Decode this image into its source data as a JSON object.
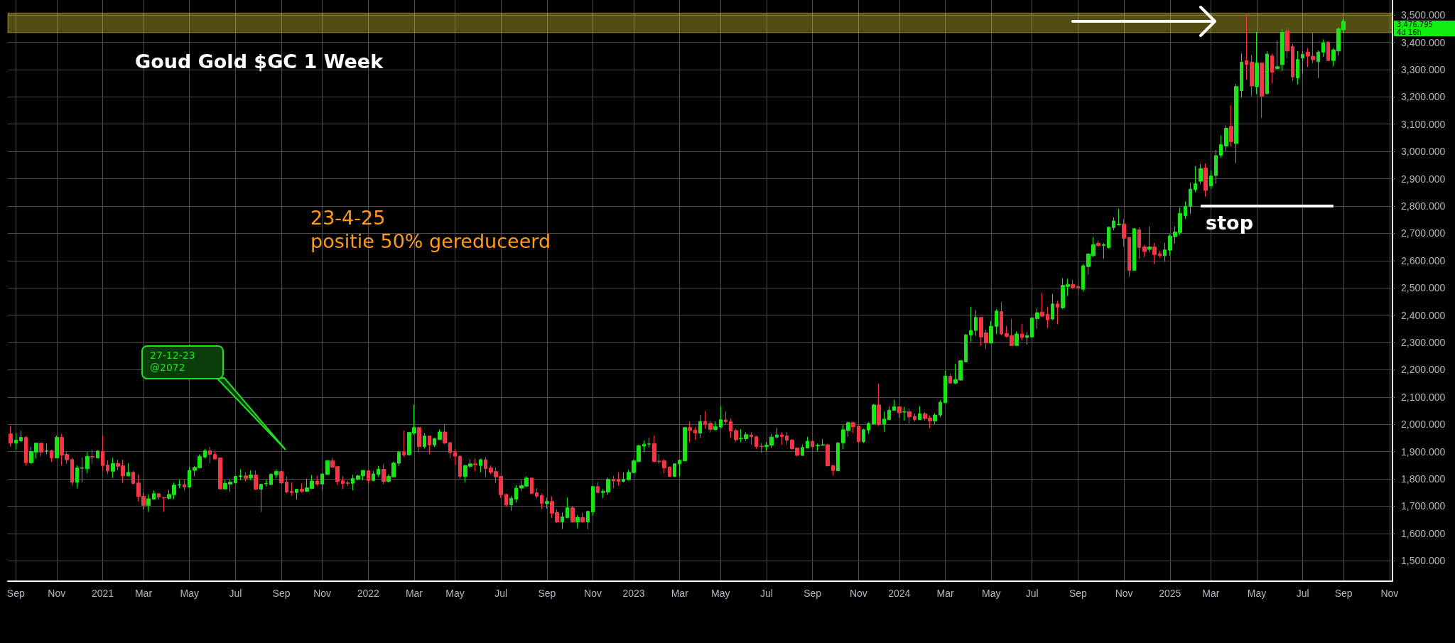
{
  "chart_data": {
    "type": "candlestick",
    "title": "Goud Gold $GC 1 Week",
    "x": [
      "2020-08-31",
      "2020-09-07",
      "2020-09-14",
      "2020-09-21",
      "2020-09-28",
      "2020-10-05",
      "2020-10-12",
      "2020-10-19",
      "2020-10-26",
      "2020-11-02",
      "2020-11-09",
      "2020-11-16",
      "2020-11-23",
      "2020-11-30",
      "2020-12-07",
      "2020-12-14",
      "2020-12-21",
      "2020-12-28",
      "2021-01-04",
      "2021-01-11",
      "2021-01-18",
      "2021-01-25",
      "2021-02-01",
      "2021-02-08",
      "2021-02-15",
      "2021-02-22",
      "2021-03-01",
      "2021-03-08",
      "2021-03-15",
      "2021-03-22",
      "2021-03-29",
      "2021-04-05",
      "2021-04-12",
      "2021-04-19",
      "2021-04-26",
      "2021-05-03",
      "2021-05-10",
      "2021-05-17",
      "2021-05-24",
      "2021-05-31",
      "2021-06-07",
      "2021-06-14",
      "2021-06-21",
      "2021-06-28",
      "2021-07-05",
      "2021-07-12",
      "2021-07-19",
      "2021-07-26",
      "2021-08-02",
      "2021-08-09",
      "2021-08-16",
      "2021-08-23",
      "2021-08-30",
      "2021-09-06",
      "2021-09-13",
      "2021-09-20",
      "2021-09-27",
      "2021-10-04",
      "2021-10-11",
      "2021-10-18",
      "2021-10-25",
      "2021-11-01",
      "2021-11-08",
      "2021-11-15",
      "2021-11-22",
      "2021-11-29",
      "2021-12-06",
      "2021-12-13",
      "2021-12-20",
      "2021-12-27",
      "2022-01-03",
      "2022-01-10",
      "2022-01-17",
      "2022-01-24",
      "2022-01-31",
      "2022-02-07",
      "2022-02-14",
      "2022-02-21",
      "2022-02-28",
      "2022-03-07",
      "2022-03-14",
      "2022-03-21",
      "2022-03-28",
      "2022-04-04",
      "2022-04-11",
      "2022-04-18",
      "2022-04-25",
      "2022-05-02",
      "2022-05-09",
      "2022-05-16",
      "2022-05-23",
      "2022-05-30",
      "2022-06-06",
      "2022-06-13",
      "2022-06-20",
      "2022-06-27",
      "2022-07-04",
      "2022-07-11",
      "2022-07-18",
      "2022-07-25",
      "2022-08-01",
      "2022-08-08",
      "2022-08-15",
      "2022-08-22",
      "2022-08-29",
      "2022-09-05",
      "2022-09-12",
      "2022-09-19",
      "2022-09-26",
      "2022-10-03",
      "2022-10-10",
      "2022-10-17",
      "2022-10-24",
      "2022-10-31",
      "2022-11-07",
      "2022-11-14",
      "2022-11-21",
      "2022-11-28",
      "2022-12-05",
      "2022-12-12",
      "2022-12-19",
      "2022-12-26",
      "2023-01-02",
      "2023-01-09",
      "2023-01-16",
      "2023-01-23",
      "2023-01-30",
      "2023-02-06",
      "2023-02-13",
      "2023-02-20",
      "2023-02-27",
      "2023-03-06",
      "2023-03-13",
      "2023-03-20",
      "2023-03-27",
      "2023-04-03",
      "2023-04-10",
      "2023-04-17",
      "2023-04-24",
      "2023-05-01",
      "2023-05-08",
      "2023-05-15",
      "2023-05-22",
      "2023-05-29",
      "2023-06-05",
      "2023-06-12",
      "2023-06-19",
      "2023-06-26",
      "2023-07-03",
      "2023-07-10",
      "2023-07-17",
      "2023-07-24",
      "2023-07-31",
      "2023-08-07",
      "2023-08-14",
      "2023-08-21",
      "2023-08-28",
      "2023-09-04",
      "2023-09-11",
      "2023-09-18",
      "2023-09-25",
      "2023-10-02",
      "2023-10-09",
      "2023-10-16",
      "2023-10-23",
      "2023-10-30",
      "2023-11-06",
      "2023-11-13",
      "2023-11-20",
      "2023-11-27",
      "2023-12-04",
      "2023-12-11",
      "2023-12-18",
      "2023-12-25",
      "2024-01-01",
      "2024-01-08",
      "2024-01-15",
      "2024-01-22",
      "2024-01-29",
      "2024-02-05",
      "2024-02-12",
      "2024-02-19",
      "2024-02-26",
      "2024-03-04",
      "2024-03-11",
      "2024-03-18",
      "2024-03-25",
      "2024-04-01",
      "2024-04-08",
      "2024-04-15",
      "2024-04-22",
      "2024-04-29",
      "2024-05-06",
      "2024-05-13",
      "2024-05-20",
      "2024-05-27",
      "2024-06-03",
      "2024-06-10",
      "2024-06-17",
      "2024-06-24",
      "2024-07-01",
      "2024-07-08",
      "2024-07-15",
      "2024-07-22",
      "2024-07-29",
      "2024-08-05",
      "2024-08-12",
      "2024-08-19",
      "2024-08-26",
      "2024-09-02",
      "2024-09-09",
      "2024-09-16",
      "2024-09-23",
      "2024-09-30",
      "2024-10-07",
      "2024-10-14",
      "2024-10-21",
      "2024-10-28",
      "2024-11-04",
      "2024-11-11",
      "2024-11-18",
      "2024-11-25",
      "2024-12-02",
      "2024-12-09",
      "2024-12-16",
      "2024-12-23",
      "2024-12-30",
      "2025-01-06",
      "2025-01-13",
      "2025-01-20",
      "2025-01-27",
      "2025-02-03",
      "2025-02-10",
      "2025-02-17",
      "2025-02-24",
      "2025-03-03",
      "2025-03-10",
      "2025-03-17",
      "2025-03-24",
      "2025-03-31",
      "2025-04-07",
      "2025-04-14",
      "2025-04-21",
      "2025-04-28",
      "2025-05-05",
      "2025-05-12",
      "2025-05-19",
      "2025-05-26",
      "2025-06-02",
      "2025-06-09",
      "2025-06-16",
      "2025-06-23",
      "2025-06-30",
      "2025-07-07",
      "2025-07-14",
      "2025-07-21",
      "2025-07-28",
      "2025-08-04",
      "2025-08-11",
      "2025-08-18",
      "2025-08-25",
      "2025-09-01"
    ],
    "ohlc": [
      [
        1965,
        1994,
        1918,
        1931
      ],
      [
        1931,
        1968,
        1907,
        1942
      ],
      [
        1939,
        1976,
        1935,
        1952
      ],
      [
        1952,
        1957,
        1848,
        1859
      ],
      [
        1859,
        1918,
        1855,
        1900
      ],
      [
        1898,
        1931,
        1874,
        1931
      ],
      [
        1931,
        1933,
        1883,
        1898
      ],
      [
        1902,
        1931,
        1890,
        1903
      ],
      [
        1903,
        1907,
        1862,
        1877
      ],
      [
        1877,
        1959,
        1877,
        1952
      ],
      [
        1952,
        1965,
        1850,
        1887
      ],
      [
        1890,
        1900,
        1855,
        1870
      ],
      [
        1871,
        1877,
        1775,
        1787
      ],
      [
        1787,
        1849,
        1765,
        1840
      ],
      [
        1839,
        1878,
        1787,
        1840
      ],
      [
        1837,
        1898,
        1820,
        1882
      ],
      [
        1882,
        1907,
        1855,
        1880
      ],
      [
        1877,
        1906,
        1876,
        1902
      ],
      [
        1900,
        1959,
        1830,
        1849
      ],
      [
        1851,
        1868,
        1817,
        1829
      ],
      [
        1828,
        1877,
        1803,
        1856
      ],
      [
        1856,
        1870,
        1832,
        1846
      ],
      [
        1848,
        1870,
        1785,
        1811
      ],
      [
        1811,
        1857,
        1809,
        1824
      ],
      [
        1824,
        1829,
        1780,
        1783
      ],
      [
        1785,
        1817,
        1717,
        1735
      ],
      [
        1736,
        1750,
        1688,
        1703
      ],
      [
        1703,
        1742,
        1679,
        1727
      ],
      [
        1726,
        1757,
        1723,
        1746
      ],
      [
        1746,
        1746,
        1724,
        1733
      ],
      [
        1732,
        1733,
        1679,
        1730
      ],
      [
        1729,
        1759,
        1724,
        1743
      ],
      [
        1742,
        1786,
        1726,
        1777
      ],
      [
        1777,
        1797,
        1766,
        1779
      ],
      [
        1779,
        1797,
        1759,
        1770
      ],
      [
        1770,
        1844,
        1768,
        1831
      ],
      [
        1831,
        1848,
        1809,
        1842
      ],
      [
        1841,
        1890,
        1840,
        1882
      ],
      [
        1880,
        1910,
        1875,
        1903
      ],
      [
        1903,
        1917,
        1857,
        1890
      ],
      [
        1890,
        1903,
        1870,
        1873
      ],
      [
        1877,
        1877,
        1763,
        1763
      ],
      [
        1763,
        1796,
        1763,
        1783
      ],
      [
        1781,
        1797,
        1752,
        1788
      ],
      [
        1785,
        1811,
        1785,
        1809
      ],
      [
        1809,
        1835,
        1796,
        1811
      ],
      [
        1811,
        1824,
        1791,
        1802
      ],
      [
        1803,
        1832,
        1796,
        1814
      ],
      [
        1814,
        1831,
        1759,
        1762
      ],
      [
        1762,
        1780,
        1679,
        1780
      ],
      [
        1782,
        1797,
        1772,
        1783
      ],
      [
        1779,
        1820,
        1777,
        1817
      ],
      [
        1815,
        1835,
        1803,
        1827
      ],
      [
        1827,
        1829,
        1783,
        1785
      ],
      [
        1788,
        1809,
        1747,
        1752
      ],
      [
        1754,
        1787,
        1738,
        1750
      ],
      [
        1750,
        1764,
        1724,
        1762
      ],
      [
        1762,
        1783,
        1749,
        1754
      ],
      [
        1754,
        1801,
        1752,
        1767
      ],
      [
        1765,
        1814,
        1762,
        1792
      ],
      [
        1792,
        1811,
        1775,
        1780
      ],
      [
        1781,
        1820,
        1759,
        1818
      ],
      [
        1816,
        1868,
        1814,
        1867
      ],
      [
        1866,
        1877,
        1841,
        1843
      ],
      [
        1845,
        1848,
        1778,
        1790
      ],
      [
        1793,
        1809,
        1762,
        1783
      ],
      [
        1786,
        1793,
        1775,
        1783
      ],
      [
        1784,
        1815,
        1758,
        1801
      ],
      [
        1798,
        1815,
        1795,
        1811
      ],
      [
        1811,
        1832,
        1795,
        1831
      ],
      [
        1830,
        1833,
        1781,
        1794
      ],
      [
        1794,
        1829,
        1791,
        1818
      ],
      [
        1816,
        1848,
        1807,
        1835
      ],
      [
        1835,
        1853,
        1781,
        1791
      ],
      [
        1791,
        1816,
        1787,
        1809
      ],
      [
        1807,
        1863,
        1807,
        1858
      ],
      [
        1857,
        1903,
        1846,
        1898
      ],
      [
        1898,
        1977,
        1881,
        1888
      ],
      [
        1888,
        1972,
        1888,
        1970
      ],
      [
        1968,
        2072,
        1961,
        1988
      ],
      [
        1988,
        1990,
        1896,
        1918
      ],
      [
        1918,
        1968,
        1911,
        1957
      ],
      [
        1957,
        1959,
        1890,
        1924
      ],
      [
        1924,
        1950,
        1917,
        1948
      ],
      [
        1944,
        1981,
        1942,
        1972
      ],
      [
        1972,
        2000,
        1927,
        1931
      ],
      [
        1933,
        1933,
        1875,
        1896
      ],
      [
        1897,
        1910,
        1850,
        1883
      ],
      [
        1883,
        1885,
        1800,
        1809
      ],
      [
        1809,
        1851,
        1788,
        1849
      ],
      [
        1846,
        1872,
        1840,
        1855
      ],
      [
        1855,
        1875,
        1829,
        1852
      ],
      [
        1849,
        1875,
        1824,
        1870
      ],
      [
        1870,
        1879,
        1807,
        1837
      ],
      [
        1840,
        1849,
        1817,
        1824
      ],
      [
        1827,
        1842,
        1785,
        1807
      ],
      [
        1809,
        1811,
        1730,
        1742
      ],
      [
        1743,
        1746,
        1698,
        1704
      ],
      [
        1705,
        1737,
        1683,
        1729
      ],
      [
        1726,
        1777,
        1713,
        1766
      ],
      [
        1766,
        1796,
        1755,
        1775
      ],
      [
        1773,
        1809,
        1771,
        1803
      ],
      [
        1803,
        1803,
        1746,
        1746
      ],
      [
        1749,
        1766,
        1729,
        1736
      ],
      [
        1739,
        1746,
        1690,
        1710
      ],
      [
        1710,
        1731,
        1691,
        1717
      ],
      [
        1717,
        1736,
        1657,
        1674
      ],
      [
        1677,
        1688,
        1639,
        1642
      ],
      [
        1642,
        1677,
        1616,
        1661
      ],
      [
        1658,
        1731,
        1657,
        1694
      ],
      [
        1694,
        1699,
        1639,
        1642
      ],
      [
        1642,
        1668,
        1619,
        1658
      ],
      [
        1658,
        1677,
        1639,
        1642
      ],
      [
        1642,
        1681,
        1616,
        1681
      ],
      [
        1679,
        1775,
        1666,
        1772
      ],
      [
        1772,
        1788,
        1748,
        1750
      ],
      [
        1750,
        1762,
        1729,
        1754
      ],
      [
        1752,
        1805,
        1742,
        1798
      ],
      [
        1798,
        1811,
        1766,
        1792
      ],
      [
        1798,
        1824,
        1775,
        1791
      ],
      [
        1791,
        1824,
        1787,
        1798
      ],
      [
        1797,
        1833,
        1794,
        1824
      ],
      [
        1823,
        1870,
        1822,
        1866
      ],
      [
        1863,
        1924,
        1862,
        1922
      ],
      [
        1920,
        1940,
        1898,
        1927
      ],
      [
        1927,
        1950,
        1914,
        1928
      ],
      [
        1929,
        1959,
        1862,
        1863
      ],
      [
        1865,
        1890,
        1855,
        1863
      ],
      [
        1866,
        1872,
        1820,
        1840
      ],
      [
        1843,
        1846,
        1809,
        1809
      ],
      [
        1809,
        1857,
        1807,
        1855
      ],
      [
        1855,
        1870,
        1809,
        1868
      ],
      [
        1866,
        1990,
        1866,
        1988
      ],
      [
        1988,
        2010,
        1935,
        1977
      ],
      [
        1979,
        1990,
        1943,
        1968
      ],
      [
        1968,
        2033,
        1950,
        2010
      ],
      [
        2010,
        2049,
        1983,
        2001
      ],
      [
        2004,
        2013,
        1970,
        1981
      ],
      [
        1981,
        2010,
        1977,
        1991
      ],
      [
        1990,
        2067,
        1985,
        2017
      ],
      [
        2016,
        2047,
        2001,
        2009
      ],
      [
        2010,
        2021,
        1951,
        1975
      ],
      [
        1977,
        1984,
        1936,
        1943
      ],
      [
        1947,
        1982,
        1934,
        1949
      ],
      [
        1947,
        1971,
        1939,
        1962
      ],
      [
        1961,
        1971,
        1925,
        1954
      ],
      [
        1955,
        1958,
        1910,
        1918
      ],
      [
        1920,
        1932,
        1895,
        1918
      ],
      [
        1918,
        1935,
        1902,
        1923
      ],
      [
        1923,
        1965,
        1913,
        1953
      ],
      [
        1953,
        1987,
        1948,
        1961
      ],
      [
        1961,
        1971,
        1925,
        1955
      ],
      [
        1958,
        1971,
        1925,
        1941
      ],
      [
        1942,
        1946,
        1908,
        1910
      ],
      [
        1913,
        1915,
        1884,
        1886
      ],
      [
        1886,
        1925,
        1884,
        1915
      ],
      [
        1913,
        1954,
        1913,
        1938
      ],
      [
        1938,
        1940,
        1916,
        1918
      ],
      [
        1921,
        1929,
        1902,
        1923
      ],
      [
        1923,
        1946,
        1923,
        1925
      ],
      [
        1925,
        1928,
        1845,
        1848
      ],
      [
        1849,
        1850,
        1812,
        1830
      ],
      [
        1830,
        1934,
        1830,
        1932
      ],
      [
        1932,
        1997,
        1908,
        1980
      ],
      [
        1977,
        2010,
        1954,
        2006
      ],
      [
        2006,
        2010,
        1968,
        1991
      ],
      [
        1993,
        1994,
        1934,
        1936
      ],
      [
        1936,
        1984,
        1931,
        1980
      ],
      [
        1979,
        2008,
        1965,
        2003
      ],
      [
        2001,
        2075,
        2000,
        2071
      ],
      [
        2071,
        2149,
        1995,
        1999
      ],
      [
        2001,
        2047,
        1973,
        2019
      ],
      [
        2017,
        2066,
        2016,
        2052
      ],
      [
        2051,
        2090,
        2051,
        2064
      ],
      [
        2064,
        2066,
        2023,
        2042
      ],
      [
        2045,
        2064,
        2013,
        2046
      ],
      [
        2046,
        2058,
        2001,
        2027
      ],
      [
        2029,
        2040,
        2010,
        2017
      ],
      [
        2017,
        2066,
        2016,
        2039
      ],
      [
        2039,
        2045,
        2014,
        2021
      ],
      [
        2023,
        2032,
        1986,
        2012
      ],
      [
        2012,
        2040,
        2001,
        2034
      ],
      [
        2034,
        2088,
        2026,
        2081
      ],
      [
        2079,
        2196,
        2078,
        2177
      ],
      [
        2176,
        2186,
        2149,
        2151
      ],
      [
        2151,
        2221,
        2147,
        2164
      ],
      [
        2162,
        2235,
        2161,
        2233
      ],
      [
        2229,
        2331,
        2227,
        2328
      ],
      [
        2327,
        2431,
        2302,
        2344
      ],
      [
        2344,
        2418,
        2324,
        2392
      ],
      [
        2392,
        2392,
        2289,
        2320
      ],
      [
        2335,
        2348,
        2276,
        2298
      ],
      [
        2298,
        2379,
        2296,
        2359
      ],
      [
        2359,
        2422,
        2331,
        2415
      ],
      [
        2413,
        2448,
        2327,
        2331
      ],
      [
        2333,
        2361,
        2318,
        2322
      ],
      [
        2325,
        2386,
        2287,
        2289
      ],
      [
        2289,
        2341,
        2287,
        2331
      ],
      [
        2331,
        2367,
        2307,
        2318
      ],
      [
        2318,
        2338,
        2292,
        2325
      ],
      [
        2320,
        2392,
        2318,
        2390
      ],
      [
        2387,
        2425,
        2350,
        2409
      ],
      [
        2411,
        2481,
        2393,
        2396
      ],
      [
        2403,
        2429,
        2353,
        2383
      ],
      [
        2386,
        2478,
        2381,
        2441
      ],
      [
        2441,
        2453,
        2366,
        2429
      ],
      [
        2427,
        2536,
        2423,
        2509
      ],
      [
        2505,
        2533,
        2470,
        2513
      ],
      [
        2513,
        2530,
        2495,
        2501
      ],
      [
        2505,
        2533,
        2472,
        2499
      ],
      [
        2495,
        2587,
        2487,
        2581
      ],
      [
        2578,
        2627,
        2549,
        2624
      ],
      [
        2618,
        2687,
        2613,
        2658
      ],
      [
        2664,
        2673,
        2650,
        2655
      ],
      [
        2655,
        2664,
        2607,
        2658
      ],
      [
        2647,
        2725,
        2645,
        2722
      ],
      [
        2721,
        2759,
        2711,
        2745
      ],
      [
        2731,
        2790,
        2728,
        2734
      ],
      [
        2734,
        2751,
        2650,
        2682
      ],
      [
        2685,
        2687,
        2541,
        2564
      ],
      [
        2564,
        2719,
        2564,
        2717
      ],
      [
        2713,
        2722,
        2607,
        2648
      ],
      [
        2650,
        2656,
        2614,
        2633
      ],
      [
        2641,
        2725,
        2630,
        2650
      ],
      [
        2650,
        2665,
        2587,
        2622
      ],
      [
        2625,
        2636,
        2610,
        2618
      ],
      [
        2618,
        2665,
        2596,
        2639
      ],
      [
        2638,
        2696,
        2618,
        2690
      ],
      [
        2688,
        2725,
        2662,
        2705
      ],
      [
        2703,
        2794,
        2694,
        2773
      ],
      [
        2765,
        2817,
        2753,
        2799
      ],
      [
        2799,
        2885,
        2771,
        2862
      ],
      [
        2860,
        2946,
        2851,
        2882
      ],
      [
        2891,
        2954,
        2880,
        2937
      ],
      [
        2939,
        2956,
        2834,
        2857
      ],
      [
        2874,
        2931,
        2862,
        2910
      ],
      [
        2912,
        3006,
        2882,
        2985
      ],
      [
        2986,
        3059,
        2977,
        3025
      ],
      [
        3020,
        3095,
        3001,
        3085
      ],
      [
        3092,
        3169,
        3018,
        3036
      ],
      [
        3029,
        3247,
        2957,
        3238
      ],
      [
        3223,
        3359,
        3197,
        3327
      ],
      [
        3333,
        3501,
        3262,
        3318
      ],
      [
        3327,
        3353,
        3203,
        3240
      ],
      [
        3237,
        3437,
        3210,
        3324
      ],
      [
        3324,
        3324,
        3123,
        3203
      ],
      [
        3212,
        3368,
        3208,
        3357
      ],
      [
        3350,
        3359,
        3249,
        3290
      ],
      [
        3303,
        3405,
        3303,
        3311
      ],
      [
        3318,
        3449,
        3295,
        3436
      ],
      [
        3442,
        3453,
        3342,
        3368
      ],
      [
        3385,
        3395,
        3259,
        3273
      ],
      [
        3270,
        3368,
        3246,
        3337
      ],
      [
        3342,
        3368,
        3283,
        3356
      ],
      [
        3364,
        3379,
        3310,
        3349
      ],
      [
        3349,
        3438,
        3323,
        3336
      ],
      [
        3329,
        3370,
        3269,
        3364
      ],
      [
        3364,
        3411,
        3346,
        3398
      ],
      [
        3401,
        3403,
        3331,
        3333
      ],
      [
        3333,
        3379,
        3312,
        3372
      ],
      [
        3368,
        3455,
        3351,
        3449
      ],
      [
        3446,
        3486,
        3437,
        3476.795
      ]
    ],
    "series": [
      {
        "type": "line",
        "x": [
          "2025-02-17",
          "2025-08-18"
        ],
        "values": [
          2800,
          2800
        ],
        "color": "#ffffff"
      }
    ],
    "xlim": [
      "2020-08-27",
      "2025-11-07"
    ],
    "xticks": [
      {
        "value": "2020-09-07",
        "label": "Sep"
      },
      {
        "value": "2020-11-02",
        "label": "Nov"
      },
      {
        "value": "2021-01-04",
        "label": "2021"
      },
      {
        "value": "2021-03-01",
        "label": "Mar"
      },
      {
        "value": "2021-05-03",
        "label": "May"
      },
      {
        "value": "2021-07-05",
        "label": "Jul"
      },
      {
        "value": "2021-09-06",
        "label": "Sep"
      },
      {
        "value": "2021-11-01",
        "label": "Nov"
      },
      {
        "value": "2022-01-03",
        "label": "2022"
      },
      {
        "value": "2022-03-07",
        "label": "Mar"
      },
      {
        "value": "2022-05-02",
        "label": "May"
      },
      {
        "value": "2022-07-04",
        "label": "Jul"
      },
      {
        "value": "2022-09-05",
        "label": "Sep"
      },
      {
        "value": "2022-11-07",
        "label": "Nov"
      },
      {
        "value": "2023-01-02",
        "label": "2023"
      },
      {
        "value": "2023-03-06",
        "label": "Mar"
      },
      {
        "value": "2023-05-01",
        "label": "May"
      },
      {
        "value": "2023-07-03",
        "label": "Jul"
      },
      {
        "value": "2023-09-04",
        "label": "Sep"
      },
      {
        "value": "2023-11-06",
        "label": "Nov"
      },
      {
        "value": "2024-01-01",
        "label": "2024"
      },
      {
        "value": "2024-03-04",
        "label": "Mar"
      },
      {
        "value": "2024-05-06",
        "label": "May"
      },
      {
        "value": "2024-07-01",
        "label": "Jul"
      },
      {
        "value": "2024-09-02",
        "label": "Sep"
      },
      {
        "value": "2024-11-04",
        "label": "Nov"
      },
      {
        "value": "2025-01-06",
        "label": "2025"
      },
      {
        "value": "2025-03-03",
        "label": "Mar"
      },
      {
        "value": "2025-05-05",
        "label": "May"
      },
      {
        "value": "2025-07-07",
        "label": "Jul"
      },
      {
        "value": "2025-09-01",
        "label": "Sep"
      },
      {
        "value": "2025-11-03",
        "label": "Nov"
      }
    ],
    "ylim": [
      1425,
      3555
    ],
    "yticks": [
      {
        "value": 1500,
        "label": "1,500.000"
      },
      {
        "value": 1600,
        "label": "1,600.000"
      },
      {
        "value": 1700,
        "label": "1,700.000"
      },
      {
        "value": 1800,
        "label": "1,800.000"
      },
      {
        "value": 1900,
        "label": "1,900.000"
      },
      {
        "value": 2000,
        "label": "2,000.000"
      },
      {
        "value": 2100,
        "label": "2,100.000"
      },
      {
        "value": 2200,
        "label": "2,200.000"
      },
      {
        "value": 2300,
        "label": "2,300.000"
      },
      {
        "value": 2400,
        "label": "2,400.000"
      },
      {
        "value": 2500,
        "label": "2,500.000"
      },
      {
        "value": 2600,
        "label": "2,600.000"
      },
      {
        "value": 2700,
        "label": "2,700.000"
      },
      {
        "value": 2800,
        "label": "2,800.000"
      },
      {
        "value": 2900,
        "label": "2,900.000"
      },
      {
        "value": 3000,
        "label": "3,000.000"
      },
      {
        "value": 3100,
        "label": "3,100.000"
      },
      {
        "value": 3200,
        "label": "3,200.000"
      },
      {
        "value": 3300,
        "label": "3,300.000"
      },
      {
        "value": 3400,
        "label": "3,400.000"
      },
      {
        "value": 3500,
        "label": "3,500.000"
      }
    ],
    "bands": [
      {
        "axis": "y",
        "from": 3436,
        "to": 3507,
        "color": "#ffeb3b"
      }
    ],
    "annotations": [
      "23-4-25\npositie 50% gereduceerd",
      "27-12-23\n@2072",
      "3,476.795\n4d 16h",
      {
        "text": "stop",
        "x": "2025-02-24",
        "y": 2800
      }
    ],
    "grid": true
  }
}
